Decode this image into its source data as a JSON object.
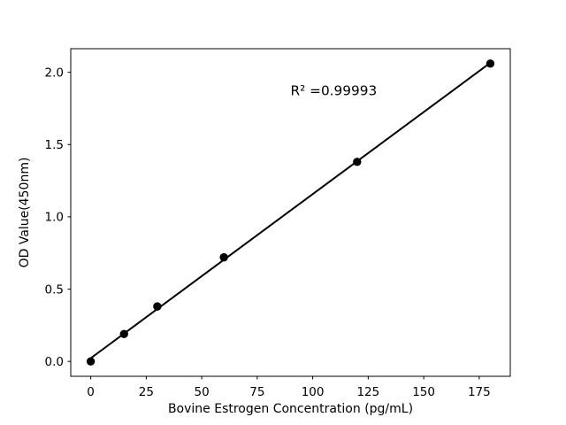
{
  "figure": {
    "background": "#ffffff",
    "foreground": "#000000"
  },
  "chart_data": {
    "type": "scatter",
    "title": "",
    "xlabel": "Bovine Estrogen Concentration (pg/mL)",
    "ylabel": "OD Value(450nm)",
    "x": [
      0,
      15,
      30,
      60,
      120,
      180
    ],
    "y": [
      0.0,
      0.19,
      0.38,
      0.72,
      1.38,
      2.06
    ],
    "fit_line": "linear-regression",
    "annotation": {
      "text": "R² =0.99993",
      "x": 90,
      "y": 1.84
    },
    "xlim": [
      -9,
      189
    ],
    "ylim": [
      -0.103,
      2.163
    ],
    "x_ticks": [
      0,
      25,
      50,
      75,
      100,
      125,
      150,
      175
    ],
    "x_tick_labels": [
      "0",
      "25",
      "50",
      "75",
      "100",
      "125",
      "150",
      "175"
    ],
    "y_ticks": [
      0.0,
      0.5,
      1.0,
      1.5,
      2.0
    ],
    "y_tick_labels": [
      "0.0",
      "0.5",
      "1.0",
      "1.5",
      "2.0"
    ],
    "grid": false,
    "legend": null,
    "marker_color": "#000000",
    "line_color": "#000000"
  }
}
